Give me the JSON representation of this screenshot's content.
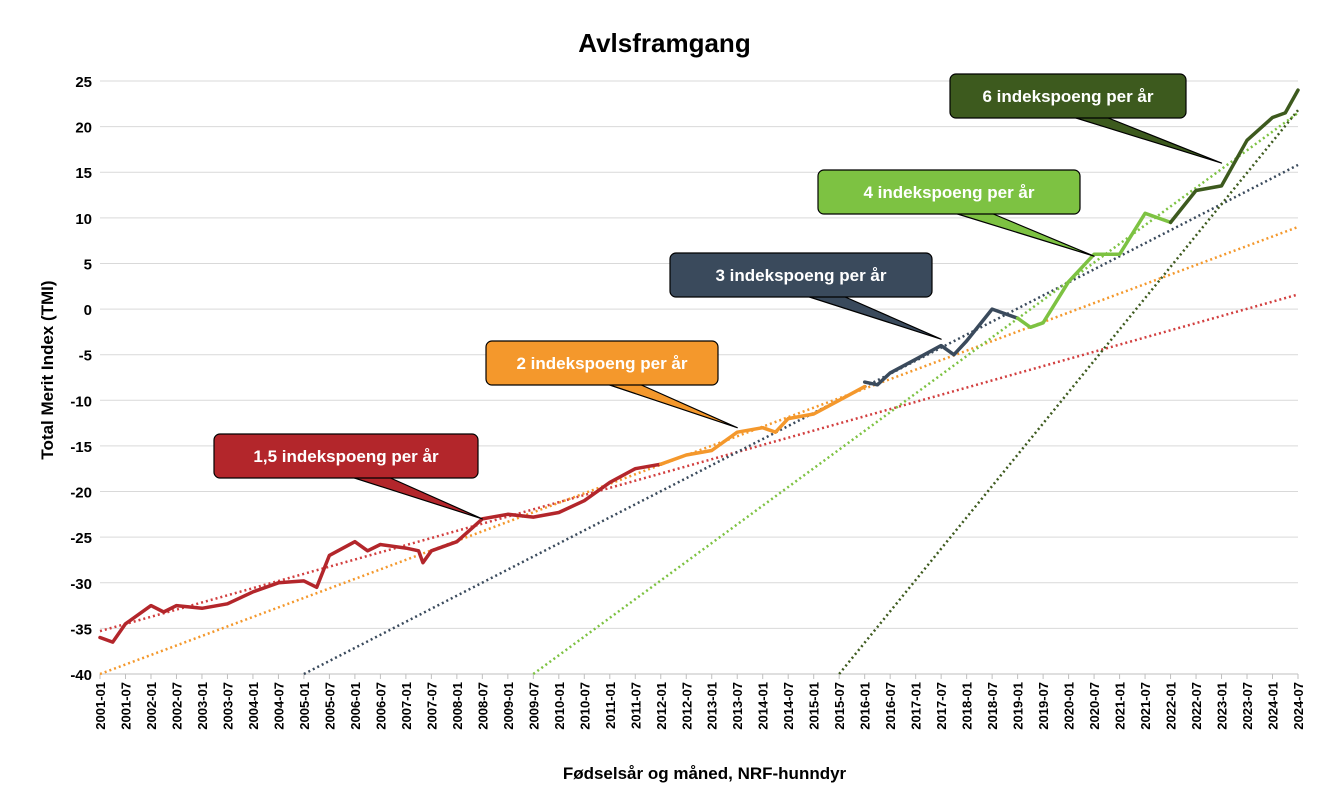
{
  "chart_data": {
    "type": "line",
    "title": "Avlsframgang",
    "xlabel": "Fødselsår og måned, NRF-hunndyr",
    "ylabel": "Total Merit Index (TMI)",
    "ylim": [
      -40,
      25
    ],
    "yticks": [
      25,
      20,
      15,
      10,
      5,
      0,
      -5,
      -10,
      -15,
      -20,
      -25,
      -30,
      -35,
      -40
    ],
    "xticks": [
      "2001-01",
      "2001-07",
      "2002-01",
      "2002-07",
      "2003-01",
      "2003-07",
      "2004-01",
      "2004-07",
      "2005-01",
      "2005-07",
      "2006-01",
      "2006-07",
      "2007-01",
      "2007-07",
      "2008-01",
      "2008-07",
      "2009-01",
      "2009-07",
      "2010-01",
      "2010-07",
      "2011-01",
      "2011-07",
      "2012-01",
      "2012-07",
      "2013-01",
      "2013-07",
      "2014-01",
      "2014-07",
      "2015-01",
      "2015-07",
      "2016-01",
      "2016-07",
      "2017-01",
      "2017-07",
      "2018-01",
      "2018-07",
      "2019-01",
      "2019-07",
      "2020-01",
      "2020-07",
      "2021-01",
      "2021-07",
      "2022-01",
      "2022-07",
      "2023-01",
      "2023-07",
      "2024-01",
      "2024-07"
    ],
    "grid": true,
    "segments": [
      {
        "color": "#b3262b",
        "points": [
          [
            "2001-01",
            -36
          ],
          [
            "2001-04",
            -36.5
          ],
          [
            "2001-07",
            -34.5
          ],
          [
            "2002-01",
            -32.5
          ],
          [
            "2002-04",
            -33.2
          ],
          [
            "2002-07",
            -32.5
          ],
          [
            "2003-01",
            -32.8
          ],
          [
            "2003-07",
            -32.3
          ],
          [
            "2004-01",
            -31
          ],
          [
            "2004-07",
            -30
          ],
          [
            "2005-01",
            -29.8
          ],
          [
            "2005-04",
            -30.5
          ],
          [
            "2005-07",
            -27
          ],
          [
            "2006-01",
            -25.5
          ],
          [
            "2006-04",
            -26.5
          ],
          [
            "2006-07",
            -25.8
          ],
          [
            "2007-01",
            -26.2
          ],
          [
            "2007-04",
            -26.5
          ],
          [
            "2007-05",
            -27.8
          ],
          [
            "2007-07",
            -26.5
          ],
          [
            "2008-01",
            -25.5
          ],
          [
            "2008-07",
            -23
          ],
          [
            "2009-01",
            -22.5
          ],
          [
            "2009-07",
            -22.8
          ],
          [
            "2010-01",
            -22.3
          ],
          [
            "2010-07",
            -21
          ],
          [
            "2011-01",
            -19
          ],
          [
            "2011-07",
            -17.5
          ],
          [
            "2012-01",
            -17
          ]
        ]
      },
      {
        "color": "#f4982c",
        "points": [
          [
            "2012-01",
            -17
          ],
          [
            "2012-07",
            -16
          ],
          [
            "2013-01",
            -15.5
          ],
          [
            "2013-07",
            -13.5
          ],
          [
            "2014-01",
            -13
          ],
          [
            "2014-04",
            -13.5
          ],
          [
            "2014-07",
            -12
          ],
          [
            "2015-01",
            -11.5
          ],
          [
            "2015-07",
            -10
          ],
          [
            "2016-01",
            -8.5
          ]
        ]
      },
      {
        "color": "#3a4a5c",
        "points": [
          [
            "2016-01",
            -8
          ],
          [
            "2016-04",
            -8.3
          ],
          [
            "2016-07",
            -7
          ],
          [
            "2017-01",
            -5.5
          ],
          [
            "2017-07",
            -4
          ],
          [
            "2017-10",
            -5
          ],
          [
            "2018-01",
            -3.5
          ],
          [
            "2018-07",
            0
          ],
          [
            "2019-01",
            -1
          ]
        ]
      },
      {
        "color": "#7dc242",
        "points": [
          [
            "2019-01",
            -1
          ],
          [
            "2019-04",
            -2
          ],
          [
            "2019-07",
            -1.5
          ],
          [
            "2020-01",
            3
          ],
          [
            "2020-07",
            6
          ],
          [
            "2021-01",
            6
          ],
          [
            "2021-07",
            10.5
          ],
          [
            "2022-01",
            9.5
          ]
        ]
      },
      {
        "color": "#3d5a1e",
        "points": [
          [
            "2022-01",
            9.5
          ],
          [
            "2022-07",
            13
          ],
          [
            "2023-01",
            13.5
          ],
          [
            "2023-07",
            18.5
          ],
          [
            "2024-01",
            21
          ],
          [
            "2024-04",
            21.5
          ],
          [
            "2024-07",
            24
          ]
        ]
      }
    ],
    "trendlines": [
      {
        "color": "#d23f3f",
        "from": [
          "2001-01",
          -35.3
        ],
        "to": [
          "2024-07",
          1.6
        ]
      },
      {
        "color": "#f4982c",
        "from": [
          "2001-01",
          -40
        ],
        "to": [
          "2024-07",
          9
        ]
      },
      {
        "color": "#3a4a5c",
        "from": [
          "2005-01",
          -40
        ],
        "to": [
          "2024-07",
          15.8
        ]
      },
      {
        "color": "#7dc242",
        "from": [
          "2009-07",
          -40
        ],
        "to": [
          "2024-07",
          21.5
        ]
      },
      {
        "color": "#3d5a1e",
        "from": [
          "2015-07",
          -40
        ],
        "to": [
          "2024-07",
          21.8
        ]
      }
    ],
    "annotations": [
      {
        "text": "1,5 indekspoeng per år",
        "color": "#b3262b",
        "text_color": "#ffffff",
        "target": [
          "2008-07",
          -23
        ]
      },
      {
        "text": "2 indekspoeng per år",
        "color": "#f4982c",
        "text_color": "#ffffff",
        "target": [
          "2013-07",
          -13
        ]
      },
      {
        "text": "3 indekspoeng per år",
        "color": "#3a4a5c",
        "text_color": "#ffffff",
        "target": [
          "2017-07",
          -3.3
        ]
      },
      {
        "text": "4 indekspoeng per år",
        "color": "#7dc242",
        "text_color": "#ffffff",
        "target": [
          "2020-07",
          5.8
        ]
      },
      {
        "text": "6 indekspoeng per år",
        "color": "#3d5a1e",
        "text_color": "#ffffff",
        "target": [
          "2023-01",
          16
        ]
      }
    ]
  }
}
